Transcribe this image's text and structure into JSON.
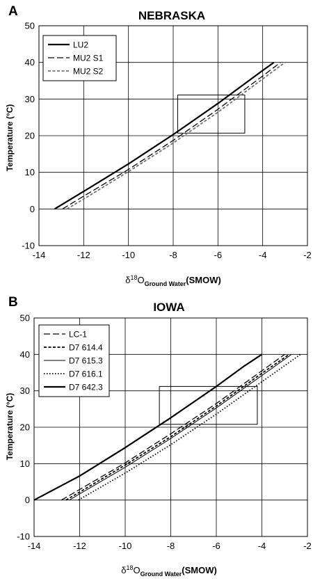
{
  "chart_data": [
    {
      "type": "line",
      "panel": "A",
      "title": "NEBRASKA",
      "ylabel": "Temperature (°C)",
      "xlabel": {
        "delta": "δ",
        "sup": "18",
        "O": "O",
        "sub": "Ground Water",
        "tail": "(SMOW)"
      },
      "xlim": [
        -14,
        -2
      ],
      "ylim": [
        -10,
        50
      ],
      "xticks": [
        -14,
        -12,
        -10,
        -8,
        -6,
        -4,
        -2
      ],
      "yticks": [
        -10,
        0,
        10,
        20,
        30,
        40,
        50
      ],
      "grid": true,
      "legend_position": "top-left",
      "series": [
        {
          "name": "LU2",
          "style": "solid",
          "color": "#000000",
          "points": [
            [
              -13.3,
              0
            ],
            [
              -12,
              4.8
            ],
            [
              -10,
              12.3
            ],
            [
              -8,
              20.3
            ],
            [
              -6,
              28.8
            ],
            [
              -4,
              37.8
            ],
            [
              -3.5,
              40
            ]
          ]
        },
        {
          "name": "MU2 S1",
          "style": "longdash",
          "color": "#000000",
          "points": [
            [
              -12.95,
              0
            ],
            [
              -12,
              3.5
            ],
            [
              -10,
              10.8
            ],
            [
              -8,
              18.7
            ],
            [
              -6,
              27.2
            ],
            [
              -4,
              36.3
            ],
            [
              -3.2,
              40
            ]
          ]
        },
        {
          "name": "MU2 S2",
          "style": "dash",
          "color": "#707070",
          "points": [
            [
              -12.75,
              0
            ],
            [
              -12,
              2.7
            ],
            [
              -10,
              10.2
            ],
            [
              -8,
              18.0
            ],
            [
              -6,
              26.4
            ],
            [
              -4,
              35.5
            ],
            [
              -3.0,
              40
            ]
          ]
        }
      ],
      "annotation_box": {
        "x": [
          -7.8,
          -4.8
        ],
        "y": [
          20.7,
          31.1
        ]
      }
    },
    {
      "type": "line",
      "panel": "B",
      "title": "IOWA",
      "ylabel": "Temperature (°C)",
      "xlabel": {
        "delta": "δ",
        "sup": "18",
        "O": "O",
        "sub": "Ground Water",
        "tail": "(SMOW)"
      },
      "xlim": [
        -14,
        -2
      ],
      "ylim": [
        -10,
        50
      ],
      "xticks": [
        -14,
        -12,
        -10,
        -8,
        -6,
        -4,
        -2
      ],
      "yticks": [
        -10,
        0,
        10,
        20,
        30,
        40,
        50
      ],
      "grid": true,
      "legend_position": "top-left",
      "series": [
        {
          "name": "LC-1",
          "style": "longdash",
          "color": "#000000",
          "points": [
            [
              -12.8,
              0
            ],
            [
              -12,
              2.9
            ],
            [
              -10,
              10.2
            ],
            [
              -8,
              18.2
            ],
            [
              -6,
              26.5
            ],
            [
              -4,
              35.5
            ],
            [
              -3.0,
              40
            ]
          ]
        },
        {
          "name": "D7 614.4",
          "style": "dash",
          "color": "#000000",
          "points": [
            [
              -12.6,
              0
            ],
            [
              -12,
              2.2
            ],
            [
              -10,
              9.6
            ],
            [
              -8,
              17.4
            ],
            [
              -6,
              25.8
            ],
            [
              -4,
              34.8
            ],
            [
              -2.8,
              40
            ]
          ]
        },
        {
          "name": "D7 615.3",
          "style": "solid-thin",
          "color": "#000000",
          "points": [
            [
              -12.45,
              0
            ],
            [
              -12,
              1.7
            ],
            [
              -10,
              9.0
            ],
            [
              -8,
              16.9
            ],
            [
              -6,
              25.3
            ],
            [
              -4,
              34.2
            ],
            [
              -2.7,
              40
            ]
          ]
        },
        {
          "name": "D7 616.1",
          "style": "dotted",
          "color": "#000000",
          "points": [
            [
              -12.05,
              0
            ],
            [
              -12,
              0.2
            ],
            [
              -10,
              7.4
            ],
            [
              -8,
              15.2
            ],
            [
              -6,
              23.6
            ],
            [
              -4,
              32.5
            ],
            [
              -2.3,
              40
            ]
          ]
        },
        {
          "name": "D7 642.3",
          "style": "solid",
          "color": "#000000",
          "points": [
            [
              -14,
              0
            ],
            [
              -12,
              6.6
            ],
            [
              -10,
              14.4
            ],
            [
              -8,
              22.6
            ],
            [
              -6,
              31.2
            ],
            [
              -4.8,
              36.7
            ],
            [
              -4,
              40
            ]
          ]
        }
      ],
      "annotation_box": {
        "x": [
          -8.5,
          -4.2
        ],
        "y": [
          20.8,
          31.2
        ]
      }
    }
  ]
}
